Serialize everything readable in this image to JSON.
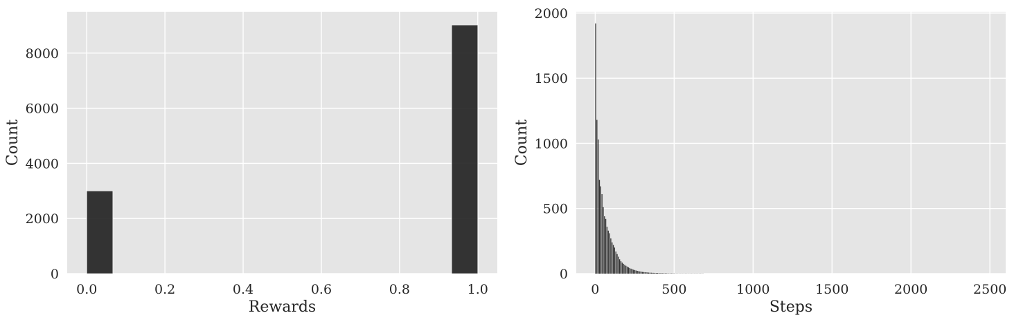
{
  "chart_data": [
    {
      "type": "bar",
      "subtype": "histogram",
      "xlabel": "Rewards",
      "ylabel": "Count",
      "xlim": [
        -0.05,
        1.05
      ],
      "ylim": [
        0,
        9500
      ],
      "xticks": [
        "0.0",
        "0.2",
        "0.4",
        "0.6",
        "0.8",
        "1.0"
      ],
      "yticks": [
        "0",
        "2000",
        "4000",
        "6000",
        "8000"
      ],
      "grid": true,
      "bar_color": "#1f1f1f",
      "bins": [
        {
          "x0": 0.0,
          "x1": 0.0667,
          "count": 3000
        },
        {
          "x0": 0.9333,
          "x1": 1.0,
          "count": 9020
        }
      ]
    },
    {
      "type": "bar",
      "subtype": "histogram",
      "xlabel": "Steps",
      "ylabel": "Count",
      "xlim": [
        -120,
        2600
      ],
      "ylim": [
        0,
        2010
      ],
      "xticks": [
        "0",
        "500",
        "1000",
        "1500",
        "2000",
        "2500"
      ],
      "yticks": [
        "0",
        "500",
        "1000",
        "1500",
        "2000"
      ],
      "grid": true,
      "bar_color": "#1f1f1f",
      "bin_width": 8,
      "bin_start": 0,
      "counts": [
        1920,
        1180,
        1030,
        720,
        670,
        610,
        510,
        440,
        420,
        360,
        330,
        310,
        270,
        240,
        220,
        200,
        170,
        150,
        130,
        110,
        95,
        85,
        75,
        68,
        60,
        54,
        48,
        43,
        38,
        34,
        30,
        27,
        24,
        21,
        19,
        17,
        15,
        13,
        12,
        11,
        10,
        9,
        8,
        7,
        7,
        6,
        6,
        5,
        5,
        5,
        4,
        4,
        4,
        3,
        3,
        3,
        3,
        2,
        2,
        2,
        2,
        2,
        2,
        1,
        1,
        1,
        1,
        1,
        1,
        1,
        1,
        1,
        1,
        1,
        1,
        1,
        1,
        1,
        1,
        1,
        1,
        1,
        1,
        1,
        1,
        1
      ]
    }
  ]
}
